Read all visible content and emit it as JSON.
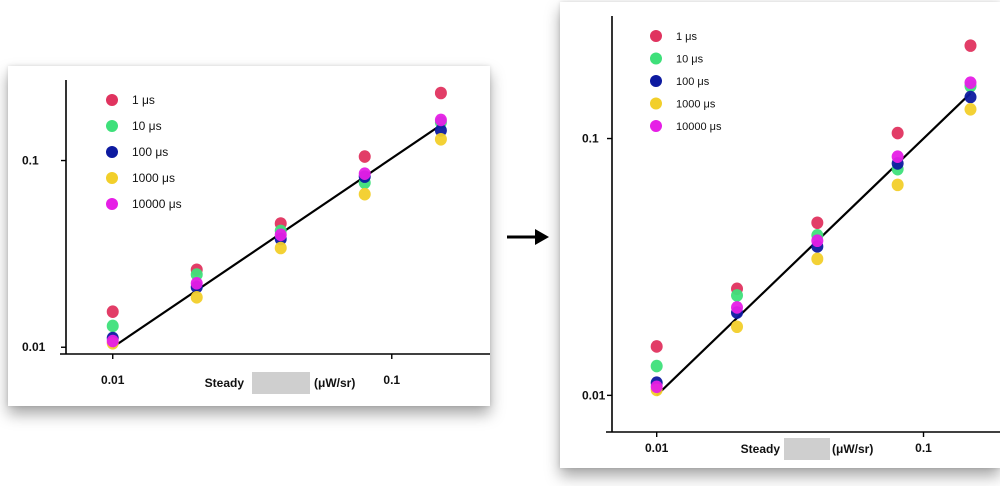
{
  "arrow_label": "→",
  "chart_data": [
    {
      "type": "scatter",
      "title": "",
      "xlabel": "Steady (μW/sr)",
      "xlabel_parts": [
        "Steady",
        "(μW/sr)"
      ],
      "ylabel": "",
      "xscale": "log",
      "yscale": "log",
      "xlim": [
        0.0068,
        0.18
      ],
      "ylim": [
        0.0092,
        0.27
      ],
      "x_ticks": [
        0.01,
        0.1
      ],
      "x_tick_labels": [
        "0.01",
        "0.1"
      ],
      "y_ticks": [
        0.01,
        0.1
      ],
      "y_tick_labels": [
        "0.01",
        "0.1"
      ],
      "legend_position": "top-left",
      "x": [
        0.01,
        0.02,
        0.04,
        0.08,
        0.15
      ],
      "series": [
        {
          "name": "1 μs",
          "color": "#e0335f",
          "values": [
            0.0155,
            0.026,
            0.046,
            0.105,
            0.23
          ]
        },
        {
          "name": "10 μs",
          "color": "#3ee07a",
          "values": [
            0.013,
            0.0245,
            0.042,
            0.076,
            0.16
          ]
        },
        {
          "name": "100 μs",
          "color": "#0d1aa0",
          "values": [
            0.0112,
            0.021,
            0.038,
            0.082,
            0.145
          ]
        },
        {
          "name": "1000 μs",
          "color": "#f2cf2a",
          "values": [
            0.0105,
            0.0185,
            0.034,
            0.066,
            0.13
          ]
        },
        {
          "name": "10000 μs",
          "color": "#e61ee6",
          "values": [
            0.0108,
            0.022,
            0.04,
            0.085,
            0.165
          ]
        }
      ],
      "fit_line": {
        "x": [
          0.01,
          0.15
        ],
        "y": [
          0.01,
          0.155
        ],
        "color": "#000000"
      }
    },
    {
      "type": "scatter",
      "title": "",
      "xlabel": "Steady (μW/sr)",
      "xlabel_parts": [
        "Steady",
        "(μW/sr)"
      ],
      "ylabel": "",
      "xscale": "log",
      "yscale": "log",
      "xlim": [
        0.0068,
        0.17
      ],
      "ylim": [
        0.0072,
        0.3
      ],
      "x_ticks": [
        0.01,
        0.1
      ],
      "x_tick_labels": [
        "0.01",
        "0.1"
      ],
      "y_ticks": [
        0.01,
        0.1
      ],
      "y_tick_labels": [
        "0.01",
        "0.1"
      ],
      "legend_position": "top-left",
      "x": [
        0.01,
        0.02,
        0.04,
        0.08,
        0.15
      ],
      "series": [
        {
          "name": "1 μs",
          "color": "#e0335f",
          "values": [
            0.0155,
            0.026,
            0.047,
            0.105,
            0.23
          ]
        },
        {
          "name": "10 μs",
          "color": "#3ee07a",
          "values": [
            0.013,
            0.0245,
            0.042,
            0.076,
            0.16
          ]
        },
        {
          "name": "100 μs",
          "color": "#0d1aa0",
          "values": [
            0.0112,
            0.021,
            0.038,
            0.08,
            0.145
          ]
        },
        {
          "name": "1000 μs",
          "color": "#f2cf2a",
          "values": [
            0.0105,
            0.0185,
            0.034,
            0.066,
            0.13
          ]
        },
        {
          "name": "10000 μs",
          "color": "#e61ee6",
          "values": [
            0.0108,
            0.022,
            0.04,
            0.085,
            0.165
          ]
        }
      ],
      "fit_line": {
        "x": [
          0.01,
          0.15
        ],
        "y": [
          0.01,
          0.15
        ],
        "color": "#000000"
      }
    }
  ]
}
